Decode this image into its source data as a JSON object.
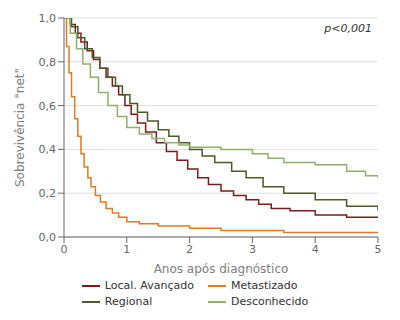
{
  "chart_data": {
    "type": "step",
    "xlabel": "Anos após diagnóstico",
    "ylabel": "Sobrevivência \"net\"",
    "annotation": "p<0,001",
    "xlim": [
      0,
      5
    ],
    "ylim": [
      0,
      1.0
    ],
    "xticks": [
      0,
      1,
      2,
      3,
      4,
      5
    ],
    "yticks": [
      {
        "value": 0.0,
        "label": "0,0"
      },
      {
        "value": 0.2,
        "label": "0,2"
      },
      {
        "value": 0.4,
        "label": "0,4"
      },
      {
        "value": 0.6,
        "label": "0,6"
      },
      {
        "value": 0.8,
        "label": "0,8"
      },
      {
        "value": 1.0,
        "label": "1,0"
      }
    ],
    "grid": true,
    "legend": "bottom",
    "series": [
      {
        "name": "Local. Avançado",
        "color": "#7b1c1c",
        "x": [
          0,
          0.1,
          0.18,
          0.27,
          0.37,
          0.47,
          0.57,
          0.67,
          0.77,
          0.87,
          0.97,
          1.07,
          1.17,
          1.3,
          1.47,
          1.63,
          1.8,
          1.97,
          2.13,
          2.3,
          2.5,
          2.7,
          2.9,
          3.1,
          3.3,
          3.6,
          4.0,
          4.5,
          5.0
        ],
        "values": [
          1.0,
          0.97,
          0.93,
          0.89,
          0.85,
          0.81,
          0.77,
          0.73,
          0.69,
          0.65,
          0.6,
          0.56,
          0.52,
          0.48,
          0.43,
          0.39,
          0.35,
          0.31,
          0.27,
          0.24,
          0.21,
          0.19,
          0.17,
          0.15,
          0.13,
          0.12,
          0.1,
          0.09,
          0.09
        ]
      },
      {
        "name": "Metastizado",
        "color": "#e07b20",
        "x": [
          0,
          0.04,
          0.08,
          0.12,
          0.17,
          0.22,
          0.27,
          0.32,
          0.38,
          0.43,
          0.5,
          0.58,
          0.67,
          0.77,
          0.87,
          1.0,
          1.2,
          1.5,
          2.0,
          2.5,
          3.0,
          3.5,
          4.0,
          4.5,
          5.0
        ],
        "values": [
          1.0,
          0.87,
          0.75,
          0.64,
          0.54,
          0.46,
          0.38,
          0.32,
          0.27,
          0.23,
          0.19,
          0.16,
          0.13,
          0.11,
          0.09,
          0.07,
          0.06,
          0.05,
          0.04,
          0.03,
          0.03,
          0.02,
          0.02,
          0.02,
          0.02
        ]
      },
      {
        "name": "Regional",
        "color": "#4a5a28",
        "x": [
          0,
          0.12,
          0.22,
          0.33,
          0.45,
          0.57,
          0.7,
          0.82,
          0.93,
          1.05,
          1.17,
          1.33,
          1.5,
          1.67,
          1.83,
          2.0,
          2.2,
          2.4,
          2.67,
          2.9,
          3.17,
          3.5,
          4.0,
          4.5,
          5.0
        ],
        "values": [
          1.0,
          0.96,
          0.91,
          0.86,
          0.82,
          0.77,
          0.73,
          0.69,
          0.65,
          0.61,
          0.57,
          0.53,
          0.49,
          0.46,
          0.43,
          0.4,
          0.37,
          0.34,
          0.3,
          0.27,
          0.23,
          0.2,
          0.17,
          0.14,
          0.12
        ]
      },
      {
        "name": "Desconhecido",
        "color": "#8faf6a",
        "x": [
          0,
          0.1,
          0.2,
          0.3,
          0.42,
          0.55,
          0.7,
          0.85,
          1.0,
          1.2,
          1.4,
          1.6,
          1.83,
          2.0,
          2.5,
          3.0,
          3.25,
          3.5,
          4.0,
          4.5,
          4.8,
          5.0
        ],
        "values": [
          1.0,
          0.93,
          0.86,
          0.79,
          0.73,
          0.66,
          0.6,
          0.55,
          0.5,
          0.47,
          0.45,
          0.43,
          0.42,
          0.41,
          0.4,
          0.38,
          0.36,
          0.34,
          0.33,
          0.3,
          0.28,
          0.27
        ]
      }
    ]
  }
}
